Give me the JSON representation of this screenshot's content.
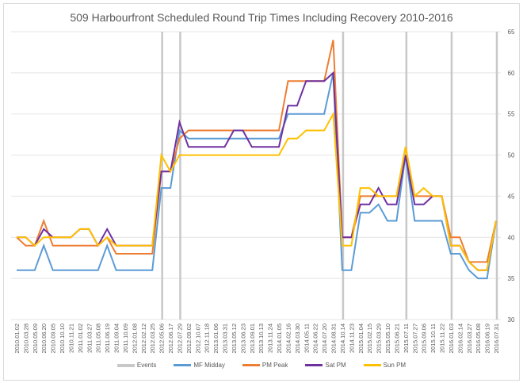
{
  "chart_data": {
    "type": "line",
    "title": "509 Harbourfront Scheduled Round Trip Times Including Recovery 2010-2016",
    "xlabel": "",
    "ylabel": "",
    "ylim": [
      30,
      65
    ],
    "y_ticks": [
      30,
      35,
      40,
      45,
      50,
      55,
      60,
      65
    ],
    "y_axis_position": "right",
    "grid": true,
    "legend_position": "bottom",
    "categories": [
      "2010.01.02",
      "2010.03.28",
      "2010.05.09",
      "2010.06.20",
      "2010.09.05",
      "2010.10.10",
      "2010.11.21",
      "2011.01.02",
      "2011.03.27",
      "2011.05.08",
      "2011.06.19",
      "2011.09.04",
      "2011.10.09",
      "2012.01.08",
      "2012.02.12",
      "2012.03.25",
      "2012.05.06",
      "2012.06.17",
      "2012.07.29",
      "2012.09.02",
      "2012.10.07",
      "2012.11.18",
      "2013.01.06",
      "2013.03.31",
      "2013.05.12",
      "2013.06.23",
      "2013.09.01",
      "2013.10.13",
      "2013.11.24",
      "2014.01.05",
      "2014.02.16",
      "2014.03.30",
      "2014.05.11",
      "2014.06.22",
      "2014.07.20",
      "2014.08.31",
      "2014.10.14",
      "2014.11.23",
      "2015.01.04",
      "2015.02.15",
      "2015.03.29",
      "2015.05.10",
      "2015.06.21",
      "2015.07.11",
      "2015.07.27",
      "2015.09.06",
      "2015.10.11",
      "2015.11.22",
      "2016.01.03",
      "2016.02.14",
      "2016.03.27",
      "2016.05.08",
      "2016.06.19",
      "2016.07.31"
    ],
    "events": [
      "2012.05.06",
      "2012.07.29",
      "2014.10.14",
      "2015.07.11",
      "2016.01.03",
      "2016.07.31"
    ],
    "series": [
      {
        "name": "Events",
        "color": "#c8c8c8",
        "type": "vertical-lines"
      },
      {
        "name": "MF Midday",
        "color": "#5b9bd5",
        "values": [
          36,
          36,
          36,
          39,
          36,
          36,
          36,
          36,
          36,
          36,
          39,
          36,
          36,
          36,
          36,
          36,
          46,
          46,
          53,
          52,
          52,
          52,
          52,
          52,
          52,
          52,
          52,
          52,
          52,
          52,
          55,
          55,
          55,
          55,
          55,
          60,
          36,
          36,
          43,
          43,
          44,
          42,
          42,
          50,
          42,
          42,
          42,
          42,
          38,
          38,
          36,
          35,
          35,
          42
        ]
      },
      {
        "name": "PM Peak",
        "color": "#ed7d31",
        "values": [
          40,
          39,
          39,
          42,
          39,
          39,
          39,
          39,
          39,
          39,
          40,
          38,
          38,
          38,
          38,
          38,
          48,
          48,
          52,
          53,
          53,
          53,
          53,
          53,
          53,
          53,
          53,
          53,
          53,
          53,
          59,
          59,
          59,
          59,
          59,
          64,
          40,
          40,
          45,
          45,
          45,
          45,
          45,
          51,
          45,
          45,
          45,
          45,
          40,
          40,
          37,
          37,
          37,
          42
        ]
      },
      {
        "name": "Sat PM",
        "color": "#7030a0",
        "values": [
          40,
          40,
          39,
          41,
          40,
          40,
          40,
          41,
          41,
          39,
          41,
          39,
          39,
          39,
          39,
          39,
          48,
          48,
          54,
          51,
          51,
          51,
          51,
          51,
          53,
          53,
          51,
          51,
          51,
          51,
          56,
          56,
          59,
          59,
          59,
          60,
          40,
          40,
          44,
          44,
          46,
          44,
          44,
          50,
          44,
          44,
          45,
          45,
          39,
          39,
          37,
          36,
          36,
          42
        ]
      },
      {
        "name": "Sun PM",
        "color": "#ffc000",
        "values": [
          40,
          40,
          39,
          40,
          40,
          40,
          40,
          41,
          41,
          39,
          40,
          39,
          39,
          39,
          39,
          39,
          50,
          48,
          50,
          50,
          50,
          50,
          50,
          50,
          50,
          50,
          50,
          50,
          50,
          50,
          52,
          52,
          53,
          53,
          53,
          55,
          39,
          39,
          46,
          46,
          45,
          45,
          45,
          51,
          45,
          46,
          45,
          45,
          39,
          39,
          37,
          36,
          36,
          42
        ]
      }
    ]
  },
  "legend": {
    "events": "Events",
    "mf": "MF Midday",
    "pm": "PM Peak",
    "sat": "Sat PM",
    "sun": "Sun PM"
  }
}
